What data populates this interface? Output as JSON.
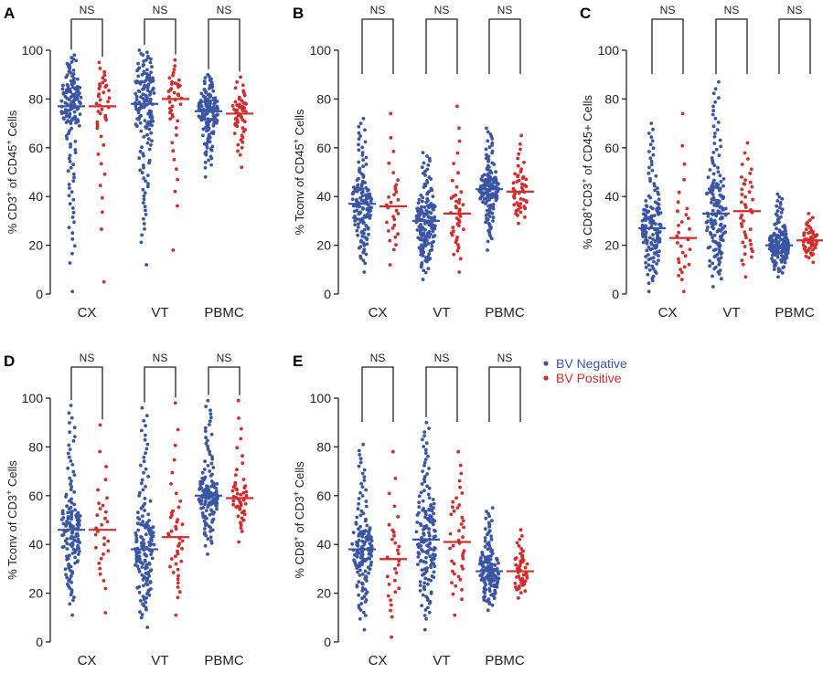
{
  "colors": {
    "negative": "#3b55a6",
    "positive": "#d42b2b",
    "axis": "#222222"
  },
  "legend": {
    "negative": "BV Negative",
    "positive": "BV Positive",
    "placement": "right-middle"
  },
  "chart_data": [
    {
      "type": "scatter",
      "panel": "A",
      "ylabel": {
        "pre": "% CD3",
        "sup1": "+",
        "mid": " of CD45",
        "sup2": "+",
        "post": " Cells"
      },
      "ylim": [
        0,
        100
      ],
      "yticks": [
        0,
        20,
        40,
        60,
        80,
        100
      ],
      "categories": [
        "CX",
        "VT",
        "PBMC"
      ],
      "significance": [
        "NS",
        "NS",
        "NS"
      ],
      "groups": [
        {
          "neg": {
            "min": 1,
            "max": 98,
            "median": 77,
            "q1": 70,
            "q3": 84,
            "n": 150
          },
          "pos": {
            "min": 5,
            "max": 95,
            "median": 77,
            "q1": 68,
            "q3": 85,
            "n": 42
          }
        },
        {
          "neg": {
            "min": 12,
            "max": 100,
            "median": 78,
            "q1": 68,
            "q3": 87,
            "n": 160
          },
          "pos": {
            "min": 18,
            "max": 96,
            "median": 80,
            "q1": 71,
            "q3": 86,
            "n": 42
          }
        },
        {
          "neg": {
            "min": 48,
            "max": 90,
            "median": 75,
            "q1": 70,
            "q3": 79,
            "n": 150
          },
          "pos": {
            "min": 52,
            "max": 89,
            "median": 74,
            "q1": 69,
            "q3": 78,
            "n": 55
          }
        }
      ]
    },
    {
      "type": "scatter",
      "panel": "B",
      "ylabel": {
        "pre": "% Tconv of CD45",
        "sup1": "+",
        "mid": " Cells",
        "sup2": "",
        "post": ""
      },
      "ylim": [
        0,
        100
      ],
      "yticks": [
        0,
        20,
        40,
        60,
        80,
        100
      ],
      "categories": [
        "CX",
        "VT",
        "PBMC"
      ],
      "significance": [
        "NS",
        "NS",
        "NS"
      ],
      "groups": [
        {
          "neg": {
            "min": 9,
            "max": 72,
            "median": 37,
            "q1": 30,
            "q3": 43,
            "n": 150
          },
          "pos": {
            "min": 12,
            "max": 74,
            "median": 36,
            "q1": 27,
            "q3": 44,
            "n": 30
          }
        },
        {
          "neg": {
            "min": 6,
            "max": 58,
            "median": 30,
            "q1": 23,
            "q3": 36,
            "n": 160
          },
          "pos": {
            "min": 9,
            "max": 77,
            "median": 33,
            "q1": 25,
            "q3": 40,
            "n": 42
          }
        },
        {
          "neg": {
            "min": 18,
            "max": 68,
            "median": 43,
            "q1": 39,
            "q3": 47,
            "n": 150
          },
          "pos": {
            "min": 29,
            "max": 65,
            "median": 42,
            "q1": 37,
            "q3": 48,
            "n": 50
          }
        }
      ]
    },
    {
      "type": "scatter",
      "panel": "C",
      "ylabel": {
        "pre": "% CD8",
        "sup1": "+",
        "mid": "CD3",
        "sup2": "+",
        "post": " of CD45+ Cells"
      },
      "ylim": [
        0,
        100
      ],
      "yticks": [
        0,
        20,
        40,
        60,
        80,
        100
      ],
      "categories": [
        "CX",
        "VT",
        "PBMC"
      ],
      "significance": [
        "NS",
        "NS",
        "NS"
      ],
      "groups": [
        {
          "neg": {
            "min": 1,
            "max": 70,
            "median": 27,
            "q1": 21,
            "q3": 35,
            "n": 150
          },
          "pos": {
            "min": 1,
            "max": 74,
            "median": 23,
            "q1": 13,
            "q3": 34,
            "n": 30
          }
        },
        {
          "neg": {
            "min": 3,
            "max": 87,
            "median": 33,
            "q1": 23,
            "q3": 44,
            "n": 160
          },
          "pos": {
            "min": 7,
            "max": 62,
            "median": 34,
            "q1": 22,
            "q3": 45,
            "n": 42
          }
        },
        {
          "neg": {
            "min": 7,
            "max": 41,
            "median": 20,
            "q1": 17,
            "q3": 24,
            "n": 150
          },
          "pos": {
            "min": 13,
            "max": 33,
            "median": 22,
            "q1": 19,
            "q3": 25,
            "n": 50
          }
        }
      ]
    },
    {
      "type": "scatter",
      "panel": "D",
      "ylabel": {
        "pre": "% Tconv of CD3",
        "sup1": "+",
        "mid": " Cells",
        "sup2": "",
        "post": ""
      },
      "ylim": [
        0,
        100
      ],
      "yticks": [
        0,
        20,
        40,
        60,
        80,
        100
      ],
      "categories": [
        "CX",
        "VT",
        "PBMC"
      ],
      "significance": [
        "NS",
        "NS",
        "NS"
      ],
      "groups": [
        {
          "neg": {
            "min": 11,
            "max": 97,
            "median": 46,
            "q1": 38,
            "q3": 53,
            "n": 150
          },
          "pos": {
            "min": 12,
            "max": 89,
            "median": 46,
            "q1": 36,
            "q3": 56,
            "n": 30
          }
        },
        {
          "neg": {
            "min": 6,
            "max": 96,
            "median": 38,
            "q1": 30,
            "q3": 48,
            "n": 160
          },
          "pos": {
            "min": 11,
            "max": 98,
            "median": 43,
            "q1": 32,
            "q3": 53,
            "n": 42
          }
        },
        {
          "neg": {
            "min": 36,
            "max": 99,
            "median": 60,
            "q1": 56,
            "q3": 65,
            "n": 150
          },
          "pos": {
            "min": 41,
            "max": 99,
            "median": 59,
            "q1": 55,
            "q3": 64,
            "n": 50
          }
        }
      ]
    },
    {
      "type": "scatter",
      "panel": "E",
      "ylabel": {
        "pre": "% CD8",
        "sup1": "+",
        "mid": " of CD3",
        "sup2": "+",
        "post": " Cells"
      },
      "ylim": [
        0,
        100
      ],
      "yticks": [
        0,
        20,
        40,
        60,
        80,
        100
      ],
      "categories": [
        "CX",
        "VT",
        "PBMC"
      ],
      "significance": [
        "NS",
        "NS",
        "NS"
      ],
      "groups": [
        {
          "neg": {
            "min": 5,
            "max": 81,
            "median": 38,
            "q1": 31,
            "q3": 45,
            "n": 150
          },
          "pos": {
            "min": 2,
            "max": 78,
            "median": 34,
            "q1": 22,
            "q3": 45,
            "n": 30
          }
        },
        {
          "neg": {
            "min": 5,
            "max": 90,
            "median": 42,
            "q1": 32,
            "q3": 54,
            "n": 160
          },
          "pos": {
            "min": 11,
            "max": 78,
            "median": 41,
            "q1": 30,
            "q3": 55,
            "n": 42
          }
        },
        {
          "neg": {
            "min": 13,
            "max": 55,
            "median": 29,
            "q1": 25,
            "q3": 34,
            "n": 150
          },
          "pos": {
            "min": 18,
            "max": 46,
            "median": 29,
            "q1": 25,
            "q3": 34,
            "n": 50
          }
        }
      ]
    }
  ]
}
